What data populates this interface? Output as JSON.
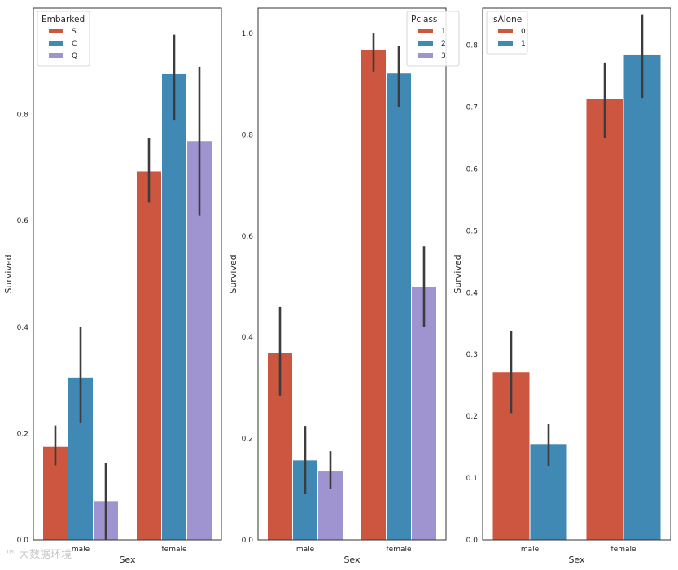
{
  "colors": {
    "c0": "#cd5640",
    "c1": "#3f89b4",
    "c2": "#a094d0",
    "err": "#3c3c3c",
    "frame": "#333333"
  },
  "watermark": "™ 大数据环境",
  "chart_data": [
    {
      "type": "bar",
      "categories": [
        "male",
        "female"
      ],
      "xlabel": "Sex",
      "ylabel": "Survived",
      "ylim": [
        0,
        1.0
      ],
      "yticks": [
        "0.0",
        "0.2",
        "0.4",
        "0.6",
        "0.8"
      ],
      "legend": {
        "title": "Embarked",
        "placement": "top-left"
      },
      "series": [
        {
          "name": "S",
          "values": [
            0.175,
            0.693
          ],
          "ci": [
            [
              0.14,
              0.215
            ],
            [
              0.635,
              0.755
            ]
          ]
        },
        {
          "name": "C",
          "values": [
            0.305,
            0.876
          ],
          "ci": [
            [
              0.22,
              0.4
            ],
            [
              0.79,
              0.95
            ]
          ]
        },
        {
          "name": "Q",
          "values": [
            0.073,
            0.75
          ],
          "ci": [
            [
              0.0,
              0.145
            ],
            [
              0.61,
              0.89
            ]
          ]
        }
      ]
    },
    {
      "type": "bar",
      "categories": [
        "male",
        "female"
      ],
      "xlabel": "Sex",
      "ylabel": "Survived",
      "ylim": [
        0,
        1.05
      ],
      "yticks": [
        "0.0",
        "0.2",
        "0.4",
        "0.6",
        "0.8",
        "1.0"
      ],
      "legend": {
        "title": "Pclass",
        "placement": "top-right"
      },
      "series": [
        {
          "name": "1",
          "values": [
            0.369,
            0.968
          ],
          "ci": [
            [
              0.285,
              0.46
            ],
            [
              0.925,
              1.0
            ]
          ]
        },
        {
          "name": "2",
          "values": [
            0.157,
            0.921
          ],
          "ci": [
            [
              0.09,
              0.225
            ],
            [
              0.855,
              0.975
            ]
          ]
        },
        {
          "name": "3",
          "values": [
            0.135,
            0.5
          ],
          "ci": [
            [
              0.1,
              0.175
            ],
            [
              0.42,
              0.58
            ]
          ]
        }
      ]
    },
    {
      "type": "bar",
      "categories": [
        "male",
        "female"
      ],
      "xlabel": "Sex",
      "ylabel": "Survived",
      "ylim": [
        0,
        0.86
      ],
      "yticks": [
        "0.0",
        "0.1",
        "0.2",
        "0.3",
        "0.4",
        "0.5",
        "0.6",
        "0.7",
        "0.8"
      ],
      "legend": {
        "title": "IsAlone",
        "placement": "top-left"
      },
      "series": [
        {
          "name": "0",
          "values": [
            0.271,
            0.713
          ],
          "ci": [
            [
              0.205,
              0.338
            ],
            [
              0.65,
              0.772
            ]
          ]
        },
        {
          "name": "1",
          "values": [
            0.155,
            0.785
          ],
          "ci": [
            [
              0.12,
              0.187
            ],
            [
              0.715,
              0.85
            ]
          ]
        }
      ]
    }
  ]
}
